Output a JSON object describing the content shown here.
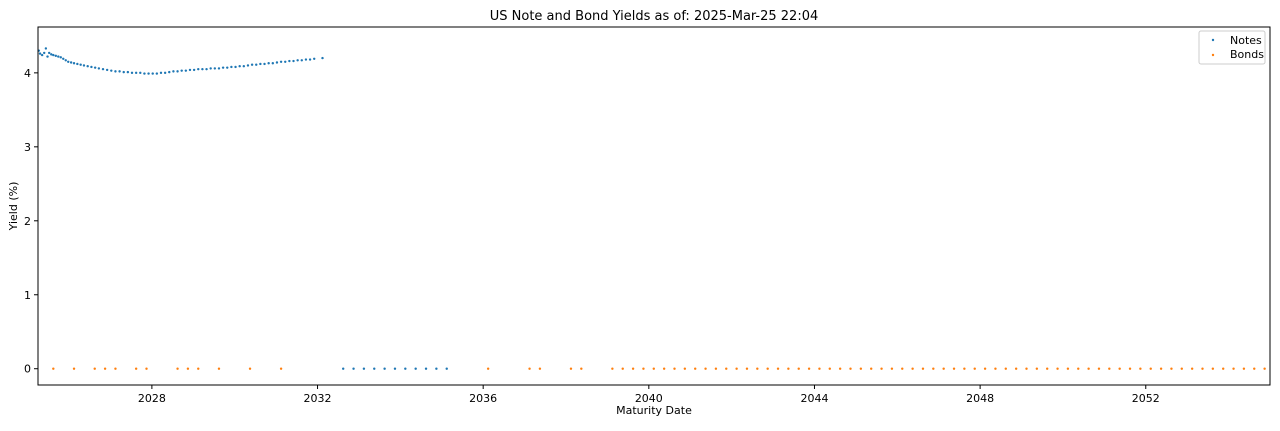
{
  "chart_data": {
    "type": "scatter",
    "title": "US Note and Bond Yields as of: 2025-Mar-25 22:04",
    "xlabel": "Maturity Date",
    "ylabel": "Yield (%)",
    "xlim": [
      2025.25,
      2055.0
    ],
    "ylim": [
      -0.22,
      4.62
    ],
    "x_ticks": [
      2028,
      2032,
      2036,
      2040,
      2044,
      2048,
      2052
    ],
    "y_ticks": [
      0,
      1,
      2,
      3,
      4
    ],
    "grid": false,
    "legend_position": "top-right",
    "series": [
      {
        "name": "Notes",
        "color": "#1f77b4",
        "marker": "point",
        "points": [
          [
            2025.27,
            4.3
          ],
          [
            2025.3,
            4.26
          ],
          [
            2025.35,
            4.24
          ],
          [
            2025.4,
            4.27
          ],
          [
            2025.44,
            4.33
          ],
          [
            2025.48,
            4.22
          ],
          [
            2025.52,
            4.27
          ],
          [
            2025.57,
            4.25
          ],
          [
            2025.62,
            4.24
          ],
          [
            2025.68,
            4.23
          ],
          [
            2025.74,
            4.22
          ],
          [
            2025.8,
            4.21
          ],
          [
            2025.86,
            4.19
          ],
          [
            2025.92,
            4.17
          ],
          [
            2025.98,
            4.15
          ],
          [
            2026.05,
            4.14
          ],
          [
            2026.12,
            4.13
          ],
          [
            2026.2,
            4.12
          ],
          [
            2026.28,
            4.11
          ],
          [
            2026.36,
            4.1
          ],
          [
            2026.45,
            4.09
          ],
          [
            2026.54,
            4.08
          ],
          [
            2026.63,
            4.07
          ],
          [
            2026.72,
            4.06
          ],
          [
            2026.82,
            4.05
          ],
          [
            2026.92,
            4.04
          ],
          [
            2027.02,
            4.03
          ],
          [
            2027.12,
            4.02
          ],
          [
            2027.22,
            4.02
          ],
          [
            2027.32,
            4.01
          ],
          [
            2027.42,
            4.01
          ],
          [
            2027.52,
            4.0
          ],
          [
            2027.62,
            4.0
          ],
          [
            2027.72,
            4.0
          ],
          [
            2027.82,
            3.99
          ],
          [
            2027.92,
            3.99
          ],
          [
            2028.02,
            3.99
          ],
          [
            2028.12,
            3.99
          ],
          [
            2028.22,
            4.0
          ],
          [
            2028.32,
            4.0
          ],
          [
            2028.42,
            4.01
          ],
          [
            2028.52,
            4.02
          ],
          [
            2028.62,
            4.02
          ],
          [
            2028.72,
            4.03
          ],
          [
            2028.82,
            4.03
          ],
          [
            2028.92,
            4.04
          ],
          [
            2029.02,
            4.04
          ],
          [
            2029.12,
            4.05
          ],
          [
            2029.22,
            4.05
          ],
          [
            2029.32,
            4.05
          ],
          [
            2029.42,
            4.06
          ],
          [
            2029.52,
            4.06
          ],
          [
            2029.62,
            4.06
          ],
          [
            2029.72,
            4.07
          ],
          [
            2029.82,
            4.07
          ],
          [
            2029.92,
            4.08
          ],
          [
            2030.02,
            4.08
          ],
          [
            2030.12,
            4.09
          ],
          [
            2030.22,
            4.09
          ],
          [
            2030.32,
            4.1
          ],
          [
            2030.42,
            4.11
          ],
          [
            2030.52,
            4.11
          ],
          [
            2030.62,
            4.12
          ],
          [
            2030.72,
            4.12
          ],
          [
            2030.82,
            4.13
          ],
          [
            2030.92,
            4.13
          ],
          [
            2031.02,
            4.14
          ],
          [
            2031.12,
            4.15
          ],
          [
            2031.22,
            4.15
          ],
          [
            2031.32,
            4.16
          ],
          [
            2031.42,
            4.16
          ],
          [
            2031.52,
            4.17
          ],
          [
            2031.62,
            4.17
          ],
          [
            2031.72,
            4.18
          ],
          [
            2031.82,
            4.18
          ],
          [
            2031.92,
            4.19
          ],
          [
            2032.12,
            4.2
          ],
          [
            2032.62,
            0.0
          ],
          [
            2032.87,
            0.0
          ],
          [
            2033.12,
            0.0
          ],
          [
            2033.37,
            0.0
          ],
          [
            2033.62,
            0.0
          ],
          [
            2033.87,
            0.0
          ],
          [
            2034.12,
            0.0
          ],
          [
            2034.37,
            0.0
          ],
          [
            2034.62,
            0.0
          ],
          [
            2034.87,
            0.0
          ],
          [
            2035.12,
            0.0
          ]
        ]
      },
      {
        "name": "Bonds",
        "color": "#ff7f0e",
        "marker": "point",
        "points": [
          [
            2025.62,
            0.0
          ],
          [
            2026.12,
            0.0
          ],
          [
            2026.62,
            0.0
          ],
          [
            2026.87,
            0.0
          ],
          [
            2027.12,
            0.0
          ],
          [
            2027.62,
            0.0
          ],
          [
            2027.87,
            0.0
          ],
          [
            2028.62,
            0.0
          ],
          [
            2028.87,
            0.0
          ],
          [
            2029.12,
            0.0
          ],
          [
            2029.62,
            0.0
          ],
          [
            2030.37,
            0.0
          ],
          [
            2031.12,
            0.0
          ],
          [
            2036.12,
            0.0
          ],
          [
            2037.12,
            0.0
          ],
          [
            2037.37,
            0.0
          ],
          [
            2038.12,
            0.0
          ],
          [
            2038.37,
            0.0
          ],
          [
            2039.12,
            0.0
          ],
          [
            2039.37,
            0.0
          ],
          [
            2039.62,
            0.0
          ],
          [
            2039.87,
            0.0
          ],
          [
            2040.12,
            0.0
          ],
          [
            2040.37,
            0.0
          ],
          [
            2040.62,
            0.0
          ],
          [
            2040.87,
            0.0
          ],
          [
            2041.12,
            0.0
          ],
          [
            2041.37,
            0.0
          ],
          [
            2041.62,
            0.0
          ],
          [
            2041.87,
            0.0
          ],
          [
            2042.12,
            0.0
          ],
          [
            2042.37,
            0.0
          ],
          [
            2042.62,
            0.0
          ],
          [
            2042.87,
            0.0
          ],
          [
            2043.12,
            0.0
          ],
          [
            2043.37,
            0.0
          ],
          [
            2043.62,
            0.0
          ],
          [
            2043.87,
            0.0
          ],
          [
            2044.12,
            0.0
          ],
          [
            2044.37,
            0.0
          ],
          [
            2044.62,
            0.0
          ],
          [
            2044.87,
            0.0
          ],
          [
            2045.12,
            0.0
          ],
          [
            2045.37,
            0.0
          ],
          [
            2045.62,
            0.0
          ],
          [
            2045.87,
            0.0
          ],
          [
            2046.12,
            0.0
          ],
          [
            2046.37,
            0.0
          ],
          [
            2046.62,
            0.0
          ],
          [
            2046.87,
            0.0
          ],
          [
            2047.12,
            0.0
          ],
          [
            2047.37,
            0.0
          ],
          [
            2047.62,
            0.0
          ],
          [
            2047.87,
            0.0
          ],
          [
            2048.12,
            0.0
          ],
          [
            2048.37,
            0.0
          ],
          [
            2048.62,
            0.0
          ],
          [
            2048.87,
            0.0
          ],
          [
            2049.12,
            0.0
          ],
          [
            2049.37,
            0.0
          ],
          [
            2049.62,
            0.0
          ],
          [
            2049.87,
            0.0
          ],
          [
            2050.12,
            0.0
          ],
          [
            2050.37,
            0.0
          ],
          [
            2050.62,
            0.0
          ],
          [
            2050.87,
            0.0
          ],
          [
            2051.12,
            0.0
          ],
          [
            2051.37,
            0.0
          ],
          [
            2051.62,
            0.0
          ],
          [
            2051.87,
            0.0
          ],
          [
            2052.12,
            0.0
          ],
          [
            2052.37,
            0.0
          ],
          [
            2052.62,
            0.0
          ],
          [
            2052.87,
            0.0
          ],
          [
            2053.12,
            0.0
          ],
          [
            2053.37,
            0.0
          ],
          [
            2053.62,
            0.0
          ],
          [
            2053.87,
            0.0
          ],
          [
            2054.12,
            0.0
          ],
          [
            2054.37,
            0.0
          ],
          [
            2054.62,
            0.0
          ],
          [
            2054.87,
            0.0
          ]
        ]
      }
    ]
  }
}
